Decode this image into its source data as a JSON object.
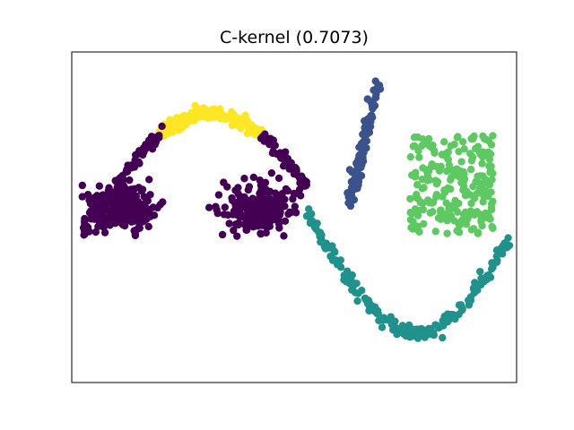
{
  "chart_data": {
    "type": "scatter",
    "title": "C-kernel (0.7073)",
    "xlabel": "",
    "ylabel": "",
    "axis_ticks_visible": false,
    "grid": false,
    "legend": "none",
    "xlim": [
      -1.5,
      3.3
    ],
    "ylim": [
      -2.0,
      1.8
    ],
    "palette": {
      "purple": "#440154",
      "blue": "#3b528b",
      "teal": "#21918c",
      "green": "#5ec962",
      "yellow": "#fde725"
    },
    "clusters": [
      {
        "color_key": "yellow",
        "label_id": 4,
        "shape": "arc-top",
        "description": "Top segment of the left sine arc",
        "x_range": [
          -0.55,
          0.55
        ],
        "curve": "sine-arc",
        "amp": 1.0,
        "base": 0.35,
        "period": 2.2,
        "phase": -1.1,
        "noise": 0.04,
        "count": 140
      },
      {
        "color_key": "purple",
        "label_id": 0,
        "shape": "arc-sides",
        "description": "Left and right flanks of the sine arc",
        "x_ranges": [
          [
            -1.4,
            -0.55
          ],
          [
            0.55,
            1.05
          ]
        ],
        "curve": "sine-arc",
        "amp": 1.0,
        "base": 0.35,
        "period": 2.2,
        "phase": -1.1,
        "noise": 0.04,
        "count": 150
      },
      {
        "color_key": "purple",
        "label_id": 0,
        "shape": "gaussian-blob",
        "description": "Left blob",
        "center": [
          -0.95,
          0.0
        ],
        "spread": [
          0.18,
          0.14
        ],
        "count": 220
      },
      {
        "color_key": "purple",
        "label_id": 0,
        "shape": "gaussian-blob",
        "description": "Right blob",
        "center": [
          0.5,
          0.0
        ],
        "spread": [
          0.18,
          0.14
        ],
        "count": 220
      },
      {
        "color_key": "blue",
        "label_id": 1,
        "shape": "line-segment",
        "description": "Steep diagonal strip",
        "from": [
          1.5,
          0.05
        ],
        "to": [
          1.8,
          1.45
        ],
        "noise": 0.025,
        "count": 120
      },
      {
        "color_key": "teal",
        "label_id": 2,
        "shape": "valley-curve",
        "description": "Right sine valley",
        "x_range": [
          1.05,
          3.25
        ],
        "curve": "sine-valley",
        "noise": 0.04,
        "count": 200
      },
      {
        "color_key": "green",
        "label_id": 3,
        "shape": "uniform-rect",
        "description": "Uniform rectangle",
        "x_range": [
          2.15,
          3.05
        ],
        "y_range": [
          -0.3,
          0.85
        ],
        "count": 220
      }
    ]
  }
}
